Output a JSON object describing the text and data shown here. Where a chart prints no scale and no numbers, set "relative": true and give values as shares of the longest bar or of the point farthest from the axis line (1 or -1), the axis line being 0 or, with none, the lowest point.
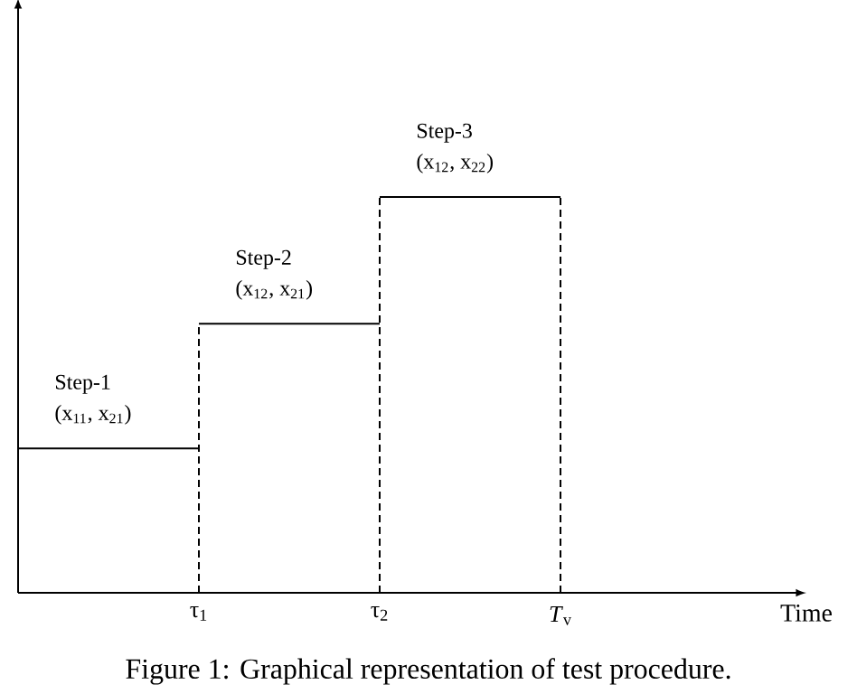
{
  "chart_data": {
    "type": "step",
    "relative": true,
    "xlabel": "Time",
    "x": [
      0,
      1,
      2,
      3
    ],
    "xlim": [
      0,
      4.3
    ],
    "xticks": [
      {
        "value": 1,
        "label": "τ$_{1}$"
      },
      {
        "value": 2,
        "label": "τ$_{2}$"
      },
      {
        "value": 3,
        "label": "*T*$_{v}$"
      }
    ],
    "tick_labels": "x",
    "series": [
      {
        "color": "#000000",
        "values": [
          0.365,
          0.68,
          1,
          1
        ]
      }
    ],
    "line_style": "solid",
    "ref_lines": [
      {
        "axis": "x",
        "value": 1,
        "label": null,
        "color": "#000000",
        "line_style": "dashed"
      },
      {
        "axis": "x",
        "value": 2,
        "label": null,
        "color": "#000000",
        "line_style": "dashed"
      },
      {
        "axis": "x",
        "value": 3,
        "label": null,
        "color": "#000000",
        "line_style": "dashed"
      }
    ],
    "annotations": [
      "Step-1",
      "(x$_{11}$, x$_{21}$)",
      "Step-2",
      "(x$_{12}$, x$_{21}$)",
      "Step-3",
      "(x$_{12}$, x$_{22}$)",
      "Figure 1: Graphical representation of test procedure."
    ]
  }
}
